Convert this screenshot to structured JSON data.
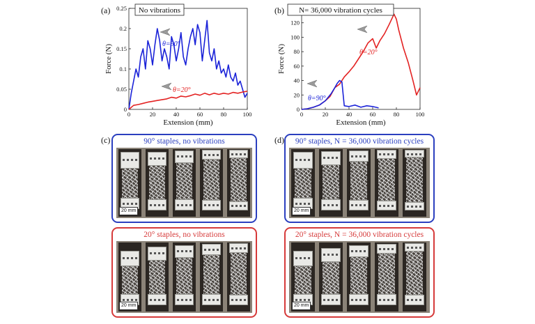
{
  "figure": {
    "panels": {
      "a": "(a)",
      "b": "(b)",
      "c": "(c)",
      "d": "(d)"
    },
    "photo_groups": {
      "c_top": {
        "title": "90° staples, no vibrations",
        "scale": "20 mm",
        "color": "#2b3fbf"
      },
      "c_bottom": {
        "title": "20° staples, no vibrations",
        "scale": "20 mm",
        "color": "#d63a3a"
      },
      "d_top": {
        "title": "90° staples, N = 36,000 vibration cycles",
        "scale": "20 mm",
        "color": "#2b3fbf"
      },
      "d_bottom": {
        "title": "20° staples, N = 36,000 vibration cycles",
        "scale": "20 mm",
        "color": "#d63a3a"
      }
    }
  },
  "chart_data": [
    {
      "type": "line",
      "title": "No vibrations",
      "xlabel": "Extension (mm)",
      "ylabel": "Force (N)",
      "xlim": [
        0,
        100
      ],
      "ylim": [
        0,
        0.25
      ],
      "xticks": [
        "0",
        "20",
        "40",
        "60",
        "80",
        "100"
      ],
      "yticks": [
        "0",
        "0.05",
        "0.1",
        "0.15",
        "0.2",
        "0.25"
      ],
      "grid": false,
      "annotations": [
        "θ=90°",
        "θ=20°"
      ],
      "series": [
        {
          "color": "#1a22d8",
          "x": [
            0,
            2,
            4,
            6,
            8,
            10,
            12,
            14,
            16,
            18,
            20,
            22,
            24,
            26,
            28,
            30,
            32,
            34,
            36,
            38,
            40,
            42,
            44,
            46,
            48,
            50,
            52,
            54,
            56,
            58,
            60,
            62,
            64,
            66,
            68,
            70,
            72,
            74,
            76,
            78,
            80,
            82,
            84,
            86,
            88,
            90,
            92,
            94,
            96,
            98,
            100
          ],
          "y": [
            0.0,
            0.04,
            0.07,
            0.1,
            0.08,
            0.13,
            0.15,
            0.1,
            0.17,
            0.15,
            0.11,
            0.16,
            0.2,
            0.17,
            0.12,
            0.15,
            0.13,
            0.1,
            0.18,
            0.16,
            0.12,
            0.15,
            0.19,
            0.13,
            0.11,
            0.15,
            0.18,
            0.2,
            0.16,
            0.21,
            0.19,
            0.12,
            0.17,
            0.22,
            0.14,
            0.12,
            0.15,
            0.1,
            0.12,
            0.09,
            0.1,
            0.08,
            0.11,
            0.08,
            0.07,
            0.09,
            0.06,
            0.07,
            0.05,
            0.03,
            0.04
          ]
        },
        {
          "color": "#e32222",
          "x": [
            0,
            4,
            8,
            12,
            16,
            20,
            24,
            28,
            32,
            36,
            40,
            44,
            48,
            52,
            56,
            60,
            64,
            68,
            72,
            76,
            80,
            84,
            88,
            92,
            96,
            100
          ],
          "y": [
            0.0,
            0.01,
            0.012,
            0.015,
            0.018,
            0.02,
            0.022,
            0.024,
            0.026,
            0.03,
            0.028,
            0.033,
            0.031,
            0.034,
            0.038,
            0.035,
            0.04,
            0.036,
            0.04,
            0.037,
            0.04,
            0.038,
            0.042,
            0.04,
            0.043,
            0.045
          ]
        }
      ]
    },
    {
      "type": "line",
      "title": "N= 36,000 vibration cycles",
      "xlabel": "Extension (mm)",
      "ylabel": "Force (N)",
      "xlim": [
        0,
        100
      ],
      "ylim": [
        0,
        140
      ],
      "xticks": [
        "0",
        "20",
        "40",
        "60",
        "80",
        "100"
      ],
      "yticks": [
        "0",
        "20",
        "40",
        "60",
        "80",
        "100",
        "120",
        "140"
      ],
      "grid": false,
      "annotations": [
        "θ=20°",
        "θ=90°"
      ],
      "series": [
        {
          "color": "#e32222",
          "x": [
            0,
            5,
            10,
            15,
            20,
            24,
            28,
            32,
            36,
            40,
            44,
            48,
            52,
            56,
            60,
            63,
            66,
            70,
            74,
            78,
            80,
            82,
            86,
            90,
            94,
            97,
            100
          ],
          "y": [
            0,
            1,
            3,
            6,
            12,
            18,
            30,
            35,
            45,
            52,
            60,
            70,
            80,
            92,
            98,
            85,
            95,
            105,
            118,
            132,
            125,
            110,
            85,
            65,
            40,
            20,
            30
          ]
        },
        {
          "color": "#1a22d8",
          "x": [
            0,
            5,
            10,
            15,
            20,
            25,
            28,
            30,
            32,
            34,
            36,
            40,
            45,
            50,
            55,
            60,
            65
          ],
          "y": [
            0,
            1,
            3,
            6,
            12,
            22,
            30,
            36,
            40,
            38,
            5,
            4,
            6,
            3,
            5,
            4,
            2
          ]
        }
      ]
    }
  ]
}
